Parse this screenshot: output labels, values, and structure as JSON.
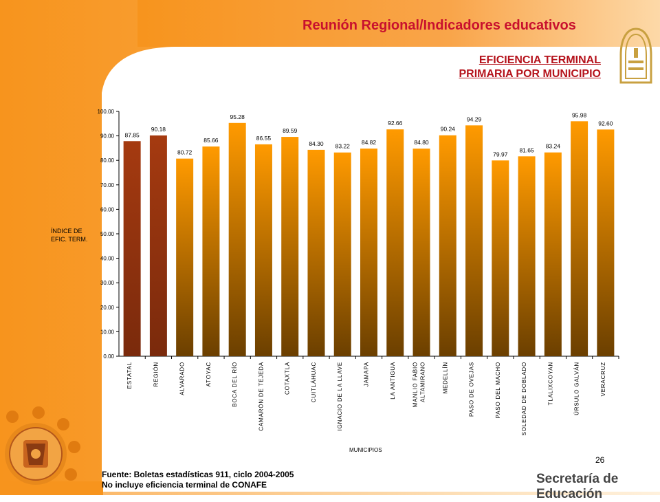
{
  "header": {
    "title_part1": "Reunión Regional",
    "title_part2": "/Indicadores educativos"
  },
  "subtitle": {
    "line1": "EFICIENCIA TERMINAL",
    "line2": "PRIMARIA POR MUNICIPIO"
  },
  "footer": {
    "source": "Fuente: Boletas estadísticas 911, ciclo 2004-2005",
    "note": "No incluye eficiencia terminal de CONAFE",
    "page_number": "26",
    "secretaria": "Secretaría de Educación"
  },
  "colors": {
    "highlight_top": "#a53a10",
    "highlight_bottom": "#7a2a0c",
    "bar_top": "#ff9a00",
    "bar_bottom": "#6b3f00",
    "accent_orange": "#f7941d",
    "title_red": "#c8102e"
  },
  "chart_data": {
    "type": "bar",
    "ylabel_line1": "ÍNDICE DE",
    "ylabel_line2": "EFIC. TERM.",
    "xlabel": "MUNICIPIOS",
    "ylim": [
      0,
      100
    ],
    "yticks": [
      "0.00",
      "10.00",
      "20.00",
      "30.00",
      "40.00",
      "50.00",
      "60.00",
      "70.00",
      "80.00",
      "90.00",
      "100.00"
    ],
    "categories": [
      [
        "ESTATAL"
      ],
      [
        "REGIÓN"
      ],
      [
        "ALVARADO"
      ],
      [
        "ATOYAC"
      ],
      [
        "BOCA DEL RÍO"
      ],
      [
        "CAMARÓN DE TEJEDA"
      ],
      [
        "COTAXTLA"
      ],
      [
        "CUITLÁHUAC"
      ],
      [
        "IGNACIO DE LA LLAVE"
      ],
      [
        "JAMAPA"
      ],
      [
        "LA ANTIGUA"
      ],
      [
        "MANLIO FABIO",
        "ALTAMIRANO"
      ],
      [
        "MEDELLÍN"
      ],
      [
        "PASO DE OVEJAS"
      ],
      [
        "PASO DEL MACHO"
      ],
      [
        "SOLEDAD DE DOBLADO"
      ],
      [
        "TLALIXCOYAN"
      ],
      [
        "ÚRSULO GALVÁN"
      ],
      [
        "VERACRUZ"
      ]
    ],
    "values": [
      87.85,
      90.18,
      80.72,
      85.66,
      95.28,
      86.55,
      89.59,
      84.3,
      83.22,
      84.82,
      92.66,
      84.8,
      90.24,
      94.29,
      79.97,
      81.65,
      83.24,
      95.98,
      92.6
    ],
    "value_labels": [
      "87.85",
      "90.18",
      "80.72",
      "85.66",
      "95.28",
      "86.55",
      "89.59",
      "84.30",
      "83.22",
      "84.82",
      "92.66",
      "84.80",
      "90.24",
      "94.29",
      "79.97",
      "81.65",
      "83.24",
      "95.98",
      "92.60"
    ],
    "highlighted": [
      true,
      true,
      false,
      false,
      false,
      false,
      false,
      false,
      false,
      false,
      false,
      false,
      false,
      false,
      false,
      false,
      false,
      false,
      false
    ],
    "grid": false,
    "legend": "none"
  }
}
